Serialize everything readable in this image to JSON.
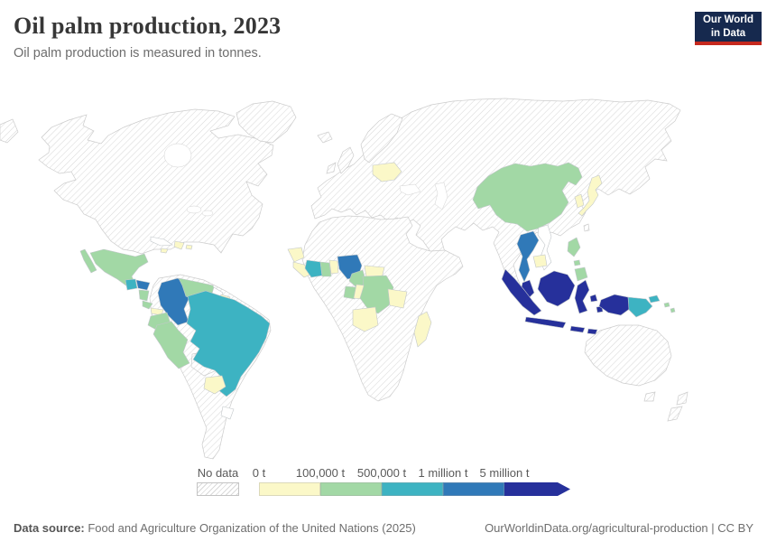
{
  "header": {
    "title": "Oil palm production, 2023",
    "subtitle": "Oil palm production is measured in tonnes."
  },
  "logo": {
    "line1": "Our World",
    "line2": "in Data"
  },
  "legend": {
    "no_data_label": "No data",
    "tick_labels": [
      "0 t",
      "100,000 t",
      "500,000 t",
      "1 million t",
      "5 million t"
    ],
    "segment_colors": [
      "#fbf8c8",
      "#a2d8a5",
      "#3db3c2",
      "#3079b8",
      "#26309b"
    ]
  },
  "footer": {
    "source_label": "Data source:",
    "source_text": " Food and Agriculture Organization of the United Nations (2025)",
    "link_text": "OurWorldinData.org/agricultural-production | CC BY"
  },
  "chart_data": {
    "type": "heatmap",
    "variant": "world-choropleth",
    "title": "Oil palm production, 2023",
    "unit": "tonnes",
    "legend_bins": [
      {
        "label": "No data",
        "style": "hatched"
      },
      {
        "label": "0 t",
        "color": "#fbf8c8",
        "range": "0 - 100,000 t"
      },
      {
        "label": "100,000 t",
        "color": "#a2d8a5",
        "range": "100,000 - 500,000 t"
      },
      {
        "label": "500,000 t",
        "color": "#3db3c2",
        "range": "500,000 - 1 million t"
      },
      {
        "label": "1 million t",
        "color": "#3079b8",
        "range": "1 - 5 million t"
      },
      {
        "label": "5 million t",
        "color": "#26309b",
        "range": "5 million t and over"
      }
    ],
    "palette": {
      "c0": "#fbf8c8",
      "c1": "#a2d8a5",
      "c2": "#3db3c2",
      "c3": "#3079b8",
      "c4": "#26309b",
      "white": "#ffffff"
    },
    "countries": {
      "mexico": "c1",
      "guatemala": "c2",
      "honduras": "c3",
      "nicaragua": "c1",
      "costa-rica": "c1",
      "panama": "c0",
      "cuba": "white",
      "jamaica": "c0",
      "dominican-republic": "c0",
      "puerto-rico": "c0",
      "colombia": "c3",
      "venezuela": "c1",
      "guyana": "white",
      "suriname": "c0",
      "ecuador": "c1",
      "peru": "c1",
      "brazil": "c2",
      "paraguay": "c0",
      "uruguay": "white",
      "guinea": "c0",
      "sierra-leone": "c0",
      "cote-divoire": "c2",
      "ghana": "c1",
      "benin": "c0",
      "nigeria": "c3",
      "cameroon": "c1",
      "central-african-republic": "c0",
      "gabon": "c1",
      "congo": "c0",
      "democratic-republic-of-congo": "c1",
      "angola": "c0",
      "tanzania": "c0",
      "madagascar": "c0",
      "ukraine": "c0",
      "china": "c1",
      "south-korea": "c0",
      "japan": "c0",
      "thailand": "c3",
      "cambodia": "c0",
      "vietnam": "white",
      "malaysia": "c4",
      "indonesia": "c4",
      "philippines": "c1",
      "papua-new-guinea": "c2",
      "solomon-islands": "c1"
    }
  }
}
